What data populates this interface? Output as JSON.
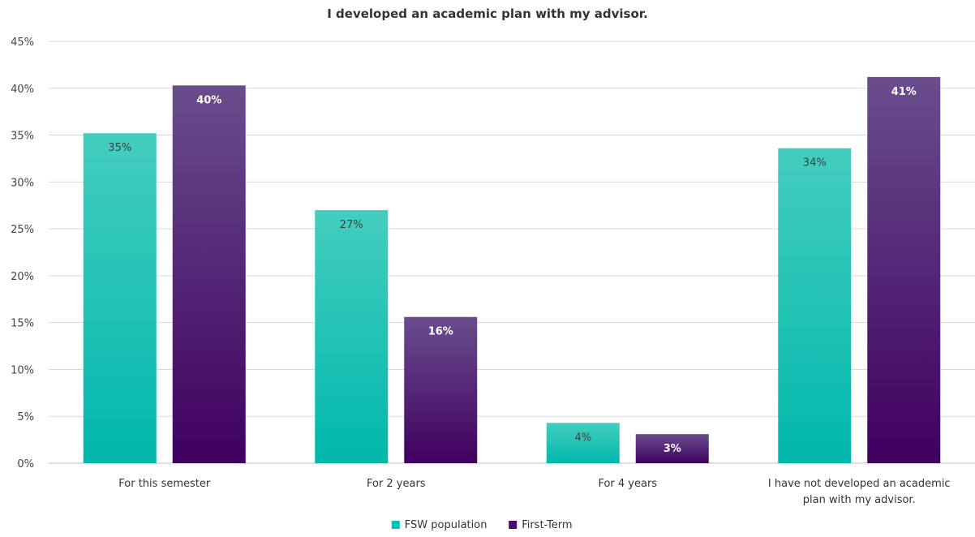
{
  "chart_data": {
    "type": "bar",
    "title": "I developed an academic plan with my advisor.",
    "categories": [
      [
        "For this semester"
      ],
      [
        "For 2 years"
      ],
      [
        "For 4 years"
      ],
      [
        "I have not developed an academic",
        "plan with my advisor."
      ]
    ],
    "series": [
      {
        "name": "FSW population",
        "values": [
          35.2,
          27.0,
          4.3,
          33.6
        ],
        "labels": [
          "35%",
          "27%",
          "4%",
          "34%"
        ],
        "color_top": "#44cdbf",
        "color_bottom": "#00b8ab",
        "label_color": "#404040"
      },
      {
        "name": "First-Term",
        "values": [
          40.3,
          15.6,
          3.1,
          41.2
        ],
        "labels": [
          "40%",
          "16%",
          "3%",
          "41%"
        ],
        "color_top": "#6a4d8c",
        "color_bottom": "#3f0060",
        "label_color": "#ffffff"
      }
    ],
    "ylim": [
      0,
      45
    ],
    "yticks": [
      {
        "value": 0,
        "label": "0%"
      },
      {
        "value": 5,
        "label": "5%"
      },
      {
        "value": 10,
        "label": "10%"
      },
      {
        "value": 15,
        "label": "15%"
      },
      {
        "value": 20,
        "label": "20%"
      },
      {
        "value": 25,
        "label": "25%"
      },
      {
        "value": 30,
        "label": "30%"
      },
      {
        "value": 35,
        "label": "35%"
      },
      {
        "value": 40,
        "label": "40%"
      },
      {
        "value": 45,
        "label": "45%"
      }
    ],
    "xlabel": "",
    "ylabel": "",
    "grid": true,
    "legend": "bottom"
  }
}
